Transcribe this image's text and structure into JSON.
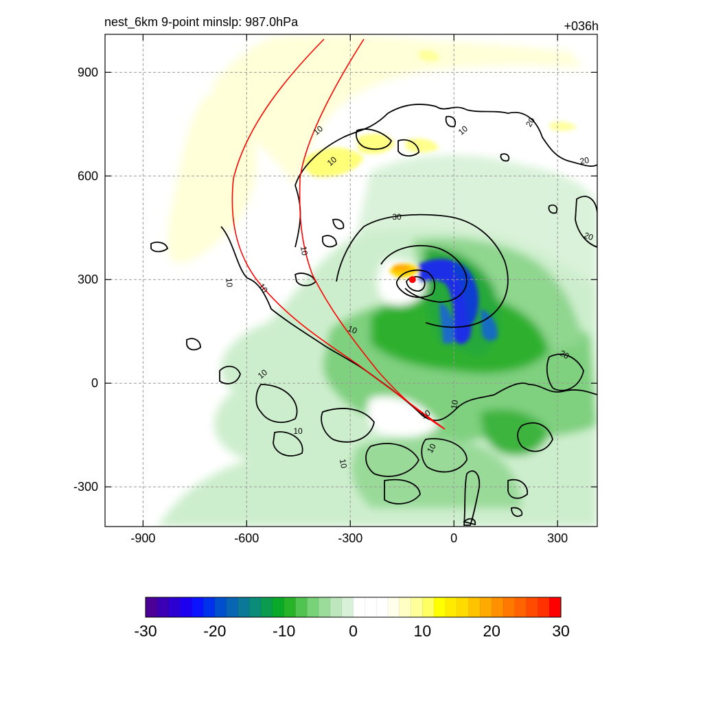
{
  "header": {
    "title": "nest_6km  9-point minslp: 987.0hPa",
    "forecast_hour": "+036h"
  },
  "chart_data": {
    "type": "heatmap",
    "title": "nest_6km  9-point minslp: 987.0hPa",
    "xlabel": "",
    "ylabel": "",
    "xlim": [
      -1010,
      415
    ],
    "ylim": [
      -415,
      1010
    ],
    "x_ticks": [
      "-900",
      "-600",
      "-300",
      "0",
      "300"
    ],
    "y_ticks": [
      "900",
      "600",
      "300",
      "0",
      "-300"
    ],
    "grid": true,
    "contour_levels": [
      10,
      20,
      30
    ],
    "contour_labels": [
      "10",
      "10",
      "10",
      "10",
      "10",
      "10",
      "10",
      "10",
      "10",
      "10",
      "10",
      "10",
      "10",
      "20",
      "20",
      "20",
      "20",
      "30"
    ],
    "storm_center": {
      "x": -120,
      "y": 300
    },
    "colorbar": {
      "ticks": [
        "-30",
        "-20",
        "-10",
        "0",
        "10",
        "20",
        "30"
      ],
      "min": -30,
      "max": 30,
      "colors": [
        "#4b0096",
        "#3c00b4",
        "#2d00d2",
        "#1e00f0",
        "#0a14ff",
        "#0032eb",
        "#0050cd",
        "#0a64b4",
        "#0a7896",
        "#0a8c78",
        "#0a9b50",
        "#0aaa28",
        "#28b428",
        "#50c350",
        "#78d278",
        "#9bdc9b",
        "#bee6be",
        "#d7f0d7",
        "#ffffff",
        "#ffffff",
        "#ffffff",
        "#ffffeb",
        "#ffffc3",
        "#ffff9b",
        "#ffff64",
        "#ffff00",
        "#ffeb00",
        "#ffdc00",
        "#ffc300",
        "#ffaa00",
        "#ff9100",
        "#ff7800",
        "#ff6400",
        "#ff4b00",
        "#ff3200",
        "#ff0000"
      ]
    }
  }
}
